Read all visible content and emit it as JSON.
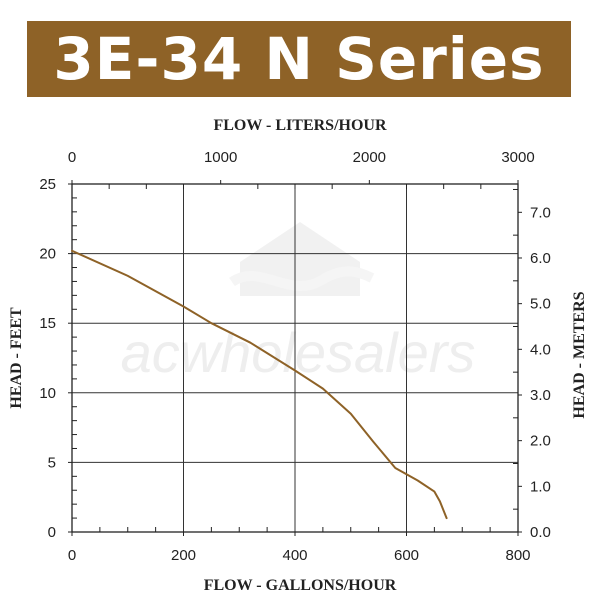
{
  "banner": {
    "title": "3E-34 N Series",
    "background_color": "#8e6227",
    "text_color": "#ffffff"
  },
  "watermark": {
    "text": "acwholesalers"
  },
  "chart_data": {
    "type": "line",
    "title": "3E-34 N Series",
    "xlabel": "FLOW - GALLONS/HOUR",
    "ylabel": "HEAD - FEET",
    "x2label": "FLOW - LITERS/HOUR",
    "y2label": "HEAD - METERS",
    "xlim": [
      0,
      800
    ],
    "ylim": [
      0,
      25
    ],
    "x2lim": [
      0,
      3000
    ],
    "y2lim": [
      0,
      7.62
    ],
    "x_ticks": [
      0,
      200,
      400,
      600,
      800
    ],
    "y_ticks": [
      0,
      5,
      10,
      15,
      20,
      25
    ],
    "x2_ticks": [
      0,
      1000,
      2000,
      3000
    ],
    "y2_ticks": [
      "0.0",
      "1.0",
      "2.0",
      "3.0",
      "4.0",
      "5.0",
      "6.0",
      "7.0"
    ],
    "grid": true,
    "line_color": "#8e6227",
    "series": [
      {
        "x": [
          0,
          100,
          200,
          250,
          320,
          400,
          450,
          500,
          540,
          580,
          620,
          650,
          660,
          672
        ],
        "y": [
          20.2,
          18.4,
          16.2,
          15.0,
          13.6,
          11.6,
          10.3,
          8.5,
          6.5,
          4.6,
          3.7,
          2.9,
          2.2,
          1.0
        ]
      }
    ]
  }
}
